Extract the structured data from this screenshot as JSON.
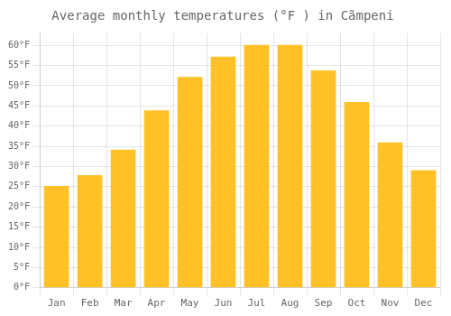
{
  "chart_data": {
    "type": "bar",
    "title": "Average monthly temperatures (°F ) in Cãmpeni",
    "categories": [
      "Jan",
      "Feb",
      "Mar",
      "Apr",
      "May",
      "Jun",
      "Jul",
      "Aug",
      "Sep",
      "Oct",
      "Nov",
      "Dec"
    ],
    "values": [
      25.2,
      27.9,
      34.2,
      43.9,
      52.2,
      57.2,
      60.1,
      60.1,
      53.8,
      46.0,
      36.0,
      29.1
    ],
    "color": "#FFC125",
    "ylim": [
      0,
      63
    ],
    "yticks": [
      {
        "value": 0,
        "label": "0°F"
      },
      {
        "value": 5,
        "label": "5°F"
      },
      {
        "value": 10,
        "label": "10°F"
      },
      {
        "value": 15,
        "label": "15°F"
      },
      {
        "value": 20,
        "label": "20°F"
      },
      {
        "value": 25,
        "label": "25°F"
      },
      {
        "value": 30,
        "label": "30°F"
      },
      {
        "value": 35,
        "label": "35°F"
      },
      {
        "value": 40,
        "label": "40°F"
      },
      {
        "value": 45,
        "label": "45°F"
      },
      {
        "value": 50,
        "label": "50°F"
      },
      {
        "value": 55,
        "label": "55°F"
      },
      {
        "value": 60,
        "label": "60°F"
      }
    ],
    "grid": true
  }
}
